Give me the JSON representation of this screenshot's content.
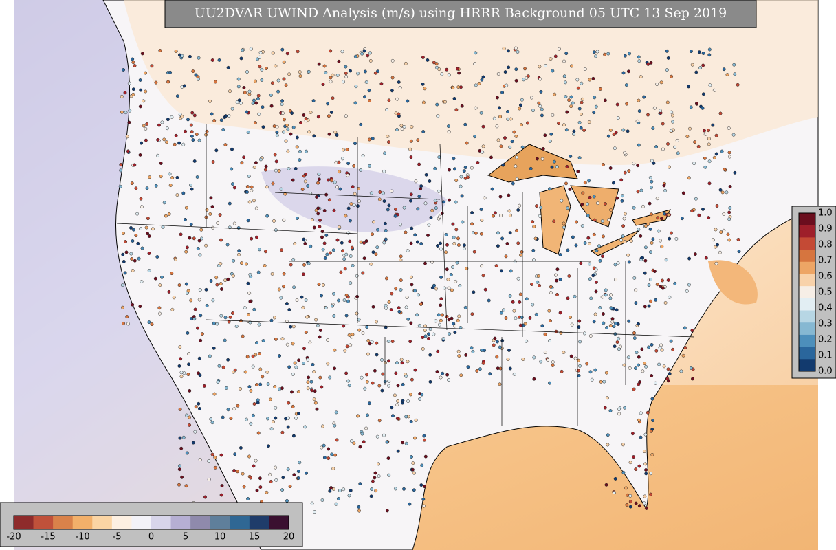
{
  "title": "UU2DVAR UWIND Analysis (m/s) using HRRR Background 05 UTC 13 Sep 2019",
  "wind_colorbar": {
    "labels": [
      "-20",
      "-15",
      "-10",
      "-5",
      "0",
      "5",
      "10",
      "15",
      "20"
    ],
    "colors": [
      "#8e2b2b",
      "#c0513a",
      "#d9824a",
      "#f2b06a",
      "#fbd5a4",
      "#fdf0e2",
      "#f3f2f8",
      "#d8d5ea",
      "#b6afd3",
      "#8f8aac",
      "#5f7f9b",
      "#2f6794",
      "#1f3c6a",
      "#3a1030"
    ]
  },
  "obs_colorbar": {
    "labels": [
      "1.0",
      "0.9",
      "0.8",
      "0.7",
      "0.6",
      "0.5",
      "0.4",
      "0.3",
      "0.2",
      "0.1",
      "0.0"
    ],
    "colors": [
      "#6b0e1e",
      "#9e1f2a",
      "#c44a35",
      "#d6753f",
      "#eda565",
      "#f8d2aa",
      "#f6eee6",
      "#e2eef3",
      "#b7d6e4",
      "#86b8d2",
      "#4d8fbb",
      "#2a669c",
      "#123a6e"
    ]
  }
}
